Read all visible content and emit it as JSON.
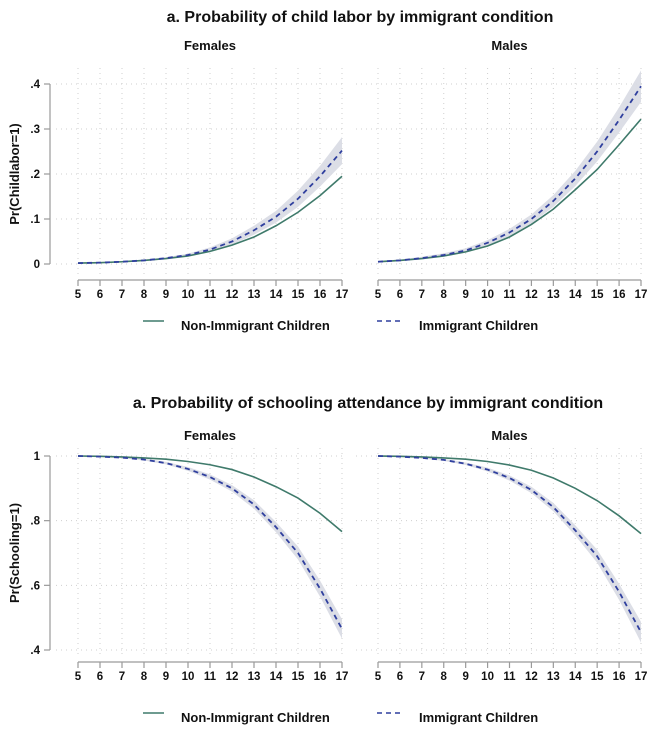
{
  "colors": {
    "non_immigrant": "#3f7a6b",
    "immigrant": "#2f3f9e",
    "ci_band": "#d8dae3",
    "grid": "#cfcfcf",
    "axis": "#9a9a9a"
  },
  "chart_data": [
    {
      "type": "line",
      "title": "a. Probability of child labor by immigrant condition",
      "ylabel": "Pr(Childlabor=1)",
      "ylim": [
        0,
        0.4
      ],
      "yticks": [
        0,
        0.1,
        0.2,
        0.3,
        0.4
      ],
      "ytick_labels": [
        "0",
        ".1",
        ".2",
        ".3",
        ".4"
      ],
      "x": [
        5,
        6,
        7,
        8,
        9,
        10,
        11,
        12,
        13,
        14,
        15,
        16,
        17
      ],
      "xtick_labels": [
        "5",
        "6",
        "7",
        "8",
        "9",
        "10",
        "11",
        "12",
        "13",
        "14",
        "15",
        "16",
        "17"
      ],
      "grid": true,
      "legend": {
        "placement": "bottom",
        "entries": [
          "Non-Immigrant Children",
          "Immigrant Children"
        ]
      },
      "panels": [
        {
          "title": "Females",
          "series": [
            {
              "name": "Non-Immigrant Children",
              "style": "solid",
              "values": [
                0.002,
                0.003,
                0.005,
                0.008,
                0.012,
                0.018,
                0.028,
                0.042,
                0.06,
                0.085,
                0.115,
                0.152,
                0.195
              ]
            },
            {
              "name": "Immigrant Children",
              "style": "dashed",
              "values": [
                0.002,
                0.003,
                0.005,
                0.008,
                0.013,
                0.02,
                0.032,
                0.05,
                0.075,
                0.105,
                0.145,
                0.195,
                0.252
              ],
              "ci_halfwidth": [
                0.001,
                0.001,
                0.001,
                0.002,
                0.002,
                0.003,
                0.005,
                0.007,
                0.01,
                0.013,
                0.018,
                0.023,
                0.03
              ]
            }
          ]
        },
        {
          "title": "Males",
          "series": [
            {
              "name": "Non-Immigrant Children",
              "style": "solid",
              "values": [
                0.005,
                0.008,
                0.012,
                0.018,
                0.027,
                0.04,
                0.06,
                0.088,
                0.122,
                0.165,
                0.21,
                0.265,
                0.322
              ]
            },
            {
              "name": "Immigrant Children",
              "style": "dashed",
              "values": [
                0.005,
                0.008,
                0.013,
                0.02,
                0.03,
                0.047,
                0.07,
                0.1,
                0.14,
                0.19,
                0.25,
                0.32,
                0.395
              ],
              "ci_halfwidth": [
                0.002,
                0.002,
                0.003,
                0.004,
                0.005,
                0.006,
                0.008,
                0.01,
                0.013,
                0.017,
                0.022,
                0.028,
                0.035
              ]
            }
          ]
        }
      ]
    },
    {
      "type": "line",
      "title": "a. Probability of schooling attendance by immigrant condition",
      "ylabel": "Pr(Schooling=1)",
      "ylim": [
        0.4,
        1
      ],
      "yticks": [
        0.4,
        0.6,
        0.8,
        1
      ],
      "ytick_labels": [
        ".4",
        ".6",
        ".8",
        "1"
      ],
      "x": [
        5,
        6,
        7,
        8,
        9,
        10,
        11,
        12,
        13,
        14,
        15,
        16,
        17
      ],
      "xtick_labels": [
        "5",
        "6",
        "7",
        "8",
        "9",
        "10",
        "11",
        "12",
        "13",
        "14",
        "15",
        "16",
        "17"
      ],
      "grid": true,
      "legend": {
        "placement": "bottom",
        "entries": [
          "Non-Immigrant Children",
          "Immigrant Children"
        ]
      },
      "panels": [
        {
          "title": "Females",
          "series": [
            {
              "name": "Non-Immigrant Children",
              "style": "solid",
              "values": [
                1.0,
                0.999,
                0.997,
                0.994,
                0.99,
                0.983,
                0.973,
                0.958,
                0.935,
                0.905,
                0.87,
                0.823,
                0.766
              ]
            },
            {
              "name": "Immigrant Children",
              "style": "dashed",
              "values": [
                1.0,
                0.998,
                0.995,
                0.989,
                0.978,
                0.96,
                0.935,
                0.9,
                0.85,
                0.78,
                0.7,
                0.59,
                0.465
              ],
              "ci_halfwidth": [
                0.0,
                0.001,
                0.002,
                0.003,
                0.004,
                0.006,
                0.008,
                0.01,
                0.013,
                0.016,
                0.02,
                0.025,
                0.03
              ]
            }
          ]
        },
        {
          "title": "Males",
          "series": [
            {
              "name": "Non-Immigrant Children",
              "style": "solid",
              "values": [
                1.0,
                0.999,
                0.997,
                0.994,
                0.99,
                0.983,
                0.972,
                0.956,
                0.932,
                0.9,
                0.862,
                0.815,
                0.76
              ]
            },
            {
              "name": "Immigrant Children",
              "style": "dashed",
              "values": [
                1.0,
                0.998,
                0.994,
                0.988,
                0.976,
                0.958,
                0.932,
                0.895,
                0.842,
                0.77,
                0.69,
                0.58,
                0.455
              ],
              "ci_halfwidth": [
                0.0,
                0.001,
                0.002,
                0.003,
                0.004,
                0.006,
                0.008,
                0.01,
                0.013,
                0.016,
                0.02,
                0.025,
                0.032
              ]
            }
          ]
        }
      ]
    }
  ]
}
